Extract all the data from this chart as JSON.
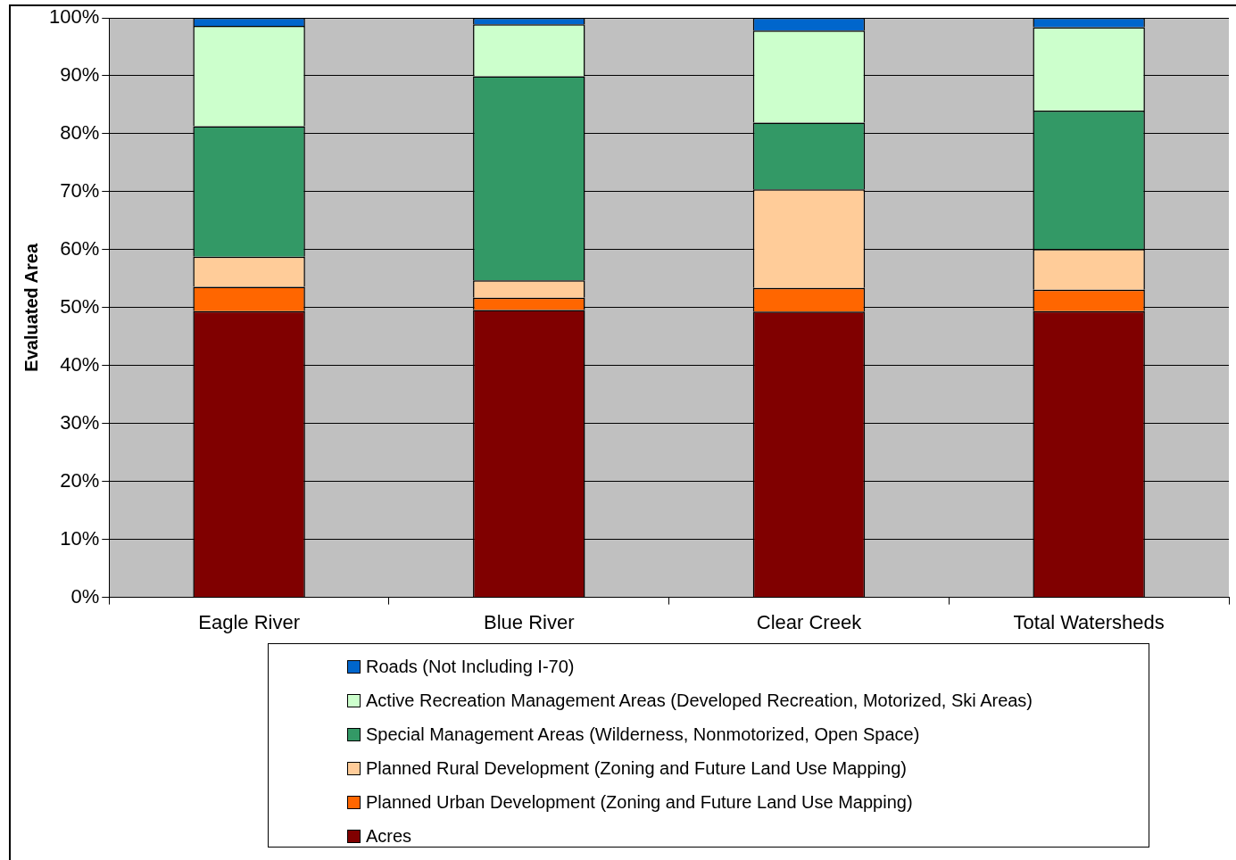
{
  "chart_data": {
    "type": "bar",
    "stacked": true,
    "ylabel": "Evaluated Area",
    "categories": [
      "Eagle River",
      "Blue River",
      "Clear Creek",
      "Total Watersheds"
    ],
    "series": [
      {
        "name": "Acres",
        "color": "#800000",
        "values": [
          49.4,
          49.6,
          49.3,
          49.4
        ]
      },
      {
        "name": "Planned Urban Development (Zoning and Future Land Use Mapping)",
        "color": "#ff6600",
        "values": [
          4.2,
          2.1,
          4.1,
          3.7
        ]
      },
      {
        "name": "Planned Rural Development (Zoning and Future Land Use Mapping)",
        "color": "#ffcc99",
        "values": [
          5.2,
          3.0,
          17.0,
          7.0
        ]
      },
      {
        "name": "Special Management Areas (Wilderness, Nonmotorized, Open Space)",
        "color": "#339966",
        "values": [
          22.5,
          35.2,
          11.5,
          23.9
        ]
      },
      {
        "name": "Active Recreation Management Areas (Developed Recreation, Motorized, Ski Areas)",
        "color": "#ccffcc",
        "values": [
          17.3,
          9.0,
          15.9,
          14.4
        ]
      },
      {
        "name": "Roads (Not Including I-70)",
        "color": "#0066cc",
        "values": [
          1.4,
          1.1,
          2.2,
          1.6
        ]
      }
    ],
    "ylim": [
      0,
      100
    ],
    "yticks": [
      {
        "value": 0,
        "label": "0%"
      },
      {
        "value": 10,
        "label": "10%"
      },
      {
        "value": 20,
        "label": "20%"
      },
      {
        "value": 30,
        "label": "30%"
      },
      {
        "value": 40,
        "label": "40%"
      },
      {
        "value": 50,
        "label": "50%"
      },
      {
        "value": 60,
        "label": "60%"
      },
      {
        "value": 70,
        "label": "70%"
      },
      {
        "value": 80,
        "label": "80%"
      },
      {
        "value": 90,
        "label": "90%"
      },
      {
        "value": 100,
        "label": "100%"
      }
    ],
    "grid": "y",
    "legend": "bottom"
  }
}
